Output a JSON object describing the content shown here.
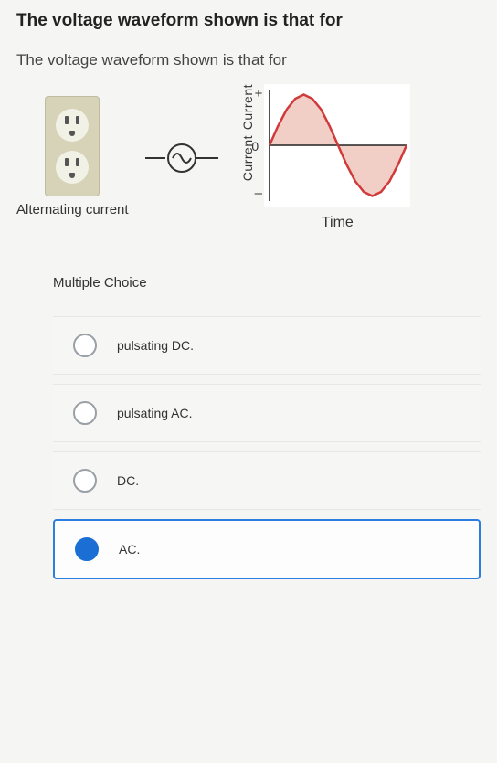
{
  "question": {
    "title": "The voltage waveform shown is that for",
    "subtitle": "The voltage waveform shown is that for"
  },
  "figure": {
    "outlet_caption": "Alternating\ncurrent",
    "chart": {
      "type": "line",
      "y_upper_label": "Current",
      "y_lower_label": "Current",
      "y_plus": "+",
      "y_minus": "–",
      "y_zero": "0",
      "x_label": "Time",
      "xlim": [
        0,
        6.28
      ],
      "ylim": [
        -1.1,
        1.1
      ],
      "line_color": "#d13a3a",
      "line_width": 2.5,
      "fill_color": "#efc9c0",
      "fill_opacity": 0.9,
      "axis_color": "#222222",
      "background_color": "#ffffff",
      "points_x": [
        0,
        0.39,
        0.79,
        1.18,
        1.57,
        1.96,
        2.36,
        2.75,
        3.14,
        3.53,
        3.93,
        4.32,
        4.71,
        5.11,
        5.5,
        5.89,
        6.28
      ],
      "points_y": [
        0,
        0.38,
        0.71,
        0.92,
        1.0,
        0.92,
        0.71,
        0.38,
        0,
        -0.38,
        -0.71,
        -0.92,
        -1.0,
        -0.92,
        -0.71,
        -0.38,
        0
      ]
    },
    "ac_symbol": {
      "circle_stroke": "#333333",
      "wire_color": "#333333"
    }
  },
  "mc": {
    "heading": "Multiple Choice",
    "options": [
      {
        "label": "pulsating DC.",
        "selected": false
      },
      {
        "label": "pulsating AC.",
        "selected": false
      },
      {
        "label": "DC.",
        "selected": false
      },
      {
        "label": "AC.",
        "selected": true
      }
    ]
  }
}
